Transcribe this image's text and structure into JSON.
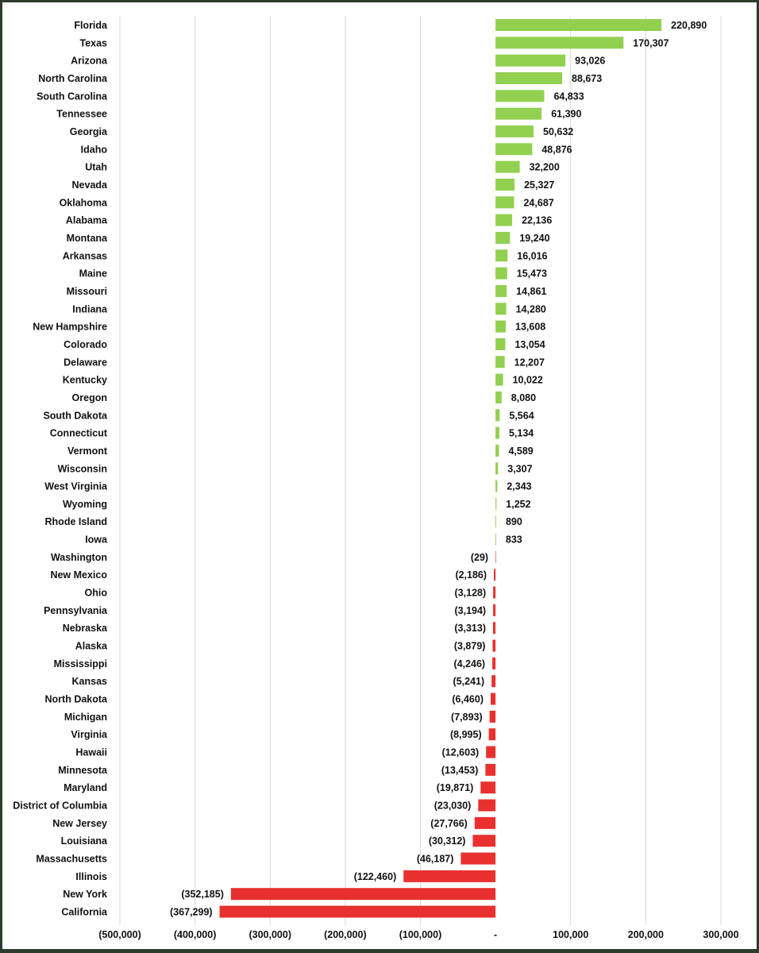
{
  "chart_data": {
    "type": "bar",
    "orientation": "horizontal",
    "title": "",
    "xlabel": "",
    "ylabel": "",
    "xlim": [
      -500000,
      300000
    ],
    "grid": true,
    "legend": "none",
    "colors": {
      "positive": "#92d050",
      "negative": "#e8312f"
    },
    "x_ticks": [
      {
        "value": -500000,
        "label": "(500,000)"
      },
      {
        "value": -400000,
        "label": "(400,000)"
      },
      {
        "value": -300000,
        "label": "(300,000)"
      },
      {
        "value": -200000,
        "label": "(200,000)"
      },
      {
        "value": -100000,
        "label": "(100,000)"
      },
      {
        "value": 0,
        "label": "-"
      },
      {
        "value": 100000,
        "label": "100,000"
      },
      {
        "value": 200000,
        "label": "200,000"
      },
      {
        "value": 300000,
        "label": "300,000"
      }
    ],
    "categories": [
      "Florida",
      "Texas",
      "Arizona",
      "North Carolina",
      "South Carolina",
      "Tennessee",
      "Georgia",
      "Idaho",
      "Utah",
      "Nevada",
      "Oklahoma",
      "Alabama",
      "Montana",
      "Arkansas",
      "Maine",
      "Missouri",
      "Indiana",
      "New Hampshire",
      "Colorado",
      "Delaware",
      "Kentucky",
      "Oregon",
      "South Dakota",
      "Connecticut",
      "Vermont",
      "Wisconsin",
      "West Virginia",
      "Wyoming",
      "Rhode Island",
      "Iowa",
      "Washington",
      "New Mexico",
      "Ohio",
      "Pennsylvania",
      "Nebraska",
      "Alaska",
      "Mississippi",
      "Kansas",
      "North Dakota",
      "Michigan",
      "Virginia",
      "Hawaii",
      "Minnesota",
      "Maryland",
      "District of Columbia",
      "New Jersey",
      "Louisiana",
      "Massachusetts",
      "Illinois",
      "New York",
      "California"
    ],
    "values": [
      220890,
      170307,
      93026,
      88673,
      64833,
      61390,
      50632,
      48876,
      32200,
      25327,
      24687,
      22136,
      19240,
      16016,
      15473,
      14861,
      14280,
      13608,
      13054,
      12207,
      10022,
      8080,
      5564,
      5134,
      4589,
      3307,
      2343,
      1252,
      890,
      833,
      -29,
      -2186,
      -3128,
      -3194,
      -3313,
      -3879,
      -4246,
      -5241,
      -6460,
      -7893,
      -8995,
      -12603,
      -13453,
      -19871,
      -23030,
      -27766,
      -30312,
      -46187,
      -122460,
      -352185,
      -367299
    ],
    "value_labels": [
      "220,890",
      "170,307",
      "93,026",
      "88,673",
      "64,833",
      "61,390",
      "50,632",
      "48,876",
      "32,200",
      "25,327",
      "24,687",
      "22,136",
      "19,240",
      "16,016",
      "15,473",
      "14,861",
      "14,280",
      "13,608",
      "13,054",
      "12,207",
      "10,022",
      "8,080",
      "5,564",
      "5,134",
      "4,589",
      "3,307",
      "2,343",
      "1,252",
      "890",
      "833",
      "(29)",
      "(2,186)",
      "(3,128)",
      "(3,194)",
      "(3,313)",
      "(3,879)",
      "(4,246)",
      "(5,241)",
      "(6,460)",
      "(7,893)",
      "(8,995)",
      "(12,603)",
      "(13,453)",
      "(19,871)",
      "(23,030)",
      "(27,766)",
      "(30,312)",
      "(46,187)",
      "(122,460)",
      "(352,185)",
      "(367,299)"
    ]
  }
}
